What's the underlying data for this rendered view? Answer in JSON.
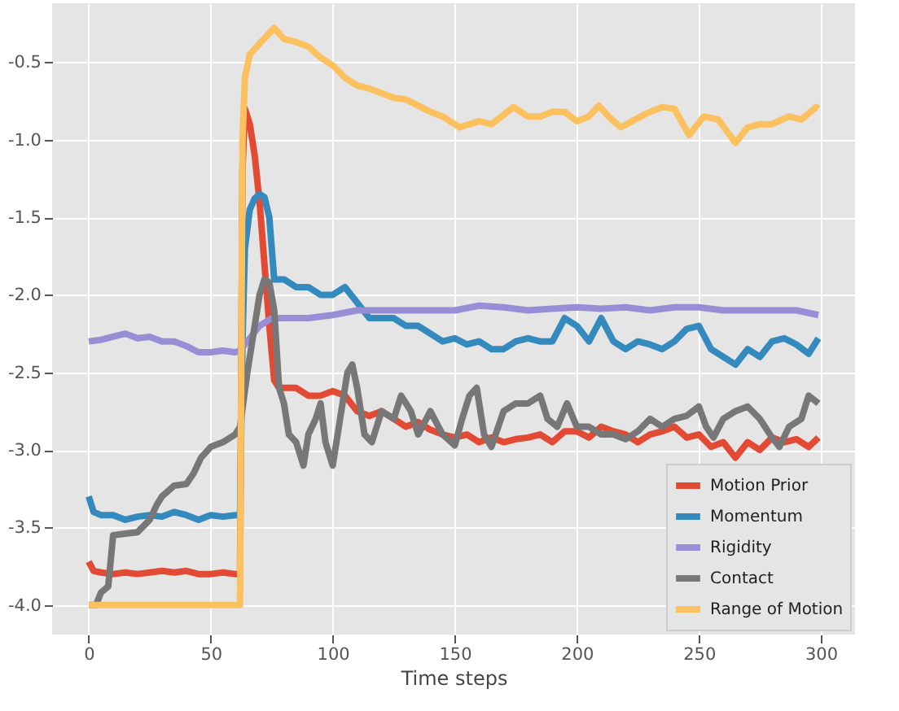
{
  "chart_data": {
    "type": "line",
    "xlabel": "Time steps",
    "xlim": [
      -15,
      314
    ],
    "ylim": [
      -4.19,
      -0.12
    ],
    "xticks": [
      0,
      50,
      100,
      150,
      200,
      250,
      300
    ],
    "yticks": [
      {
        "value": -4,
        "label": "-4.0"
      },
      -3.5,
      {
        "value": -3,
        "label": "-3.0"
      },
      -2.5,
      {
        "value": -2,
        "label": "-2.0"
      },
      -1.5,
      {
        "value": -1,
        "label": "-1.0"
      },
      -0.5
    ],
    "grid": true,
    "legend": "bottom right",
    "line_style": "solid",
    "series": [
      {
        "name": "Motion Prior",
        "color": "#e24a33",
        "x": [
          0,
          2,
          5,
          10,
          15,
          20,
          25,
          30,
          35,
          40,
          45,
          50,
          55,
          60,
          62,
          63,
          64,
          66,
          68,
          70,
          72,
          74,
          76,
          78,
          80,
          85,
          90,
          95,
          100,
          105,
          110,
          115,
          120,
          125,
          130,
          135,
          140,
          145,
          150,
          155,
          160,
          165,
          170,
          175,
          180,
          185,
          190,
          195,
          200,
          205,
          210,
          215,
          220,
          225,
          230,
          235,
          240,
          245,
          250,
          255,
          260,
          265,
          270,
          275,
          280,
          285,
          290,
          295,
          299
        ],
        "values": [
          -3.72,
          -3.78,
          -3.79,
          -3.8,
          -3.79,
          -3.8,
          -3.79,
          -3.78,
          -3.79,
          -3.78,
          -3.8,
          -3.8,
          -3.79,
          -3.8,
          -3.8,
          -1.2,
          -0.8,
          -0.9,
          -1.1,
          -1.4,
          -1.8,
          -2.2,
          -2.55,
          -2.6,
          -2.6,
          -2.6,
          -2.65,
          -2.65,
          -2.62,
          -2.65,
          -2.75,
          -2.78,
          -2.75,
          -2.8,
          -2.85,
          -2.82,
          -2.87,
          -2.9,
          -2.92,
          -2.9,
          -2.95,
          -2.92,
          -2.95,
          -2.93,
          -2.92,
          -2.9,
          -2.95,
          -2.88,
          -2.88,
          -2.92,
          -2.85,
          -2.88,
          -2.9,
          -2.95,
          -2.9,
          -2.88,
          -2.85,
          -2.92,
          -2.9,
          -2.98,
          -2.95,
          -3.05,
          -2.95,
          -3.0,
          -2.92,
          -2.95,
          -2.93,
          -2.98,
          -2.92
        ]
      },
      {
        "name": "Momentum",
        "color": "#348abd",
        "x": [
          0,
          2,
          5,
          10,
          15,
          20,
          25,
          30,
          35,
          40,
          45,
          50,
          55,
          60,
          62,
          63,
          64,
          66,
          68,
          70,
          72,
          74,
          76,
          80,
          85,
          90,
          95,
          100,
          105,
          110,
          115,
          120,
          125,
          130,
          135,
          140,
          145,
          150,
          155,
          160,
          165,
          170,
          175,
          180,
          185,
          190,
          195,
          200,
          205,
          210,
          215,
          220,
          225,
          230,
          235,
          240,
          245,
          250,
          255,
          260,
          265,
          270,
          275,
          280,
          285,
          290,
          295,
          299
        ],
        "values": [
          -3.3,
          -3.4,
          -3.42,
          -3.42,
          -3.45,
          -3.43,
          -3.42,
          -3.43,
          -3.4,
          -3.42,
          -3.45,
          -3.42,
          -3.43,
          -3.42,
          -3.42,
          -2.3,
          -1.7,
          -1.45,
          -1.38,
          -1.35,
          -1.37,
          -1.5,
          -1.9,
          -1.9,
          -1.95,
          -1.95,
          -2.0,
          -2.0,
          -1.95,
          -2.05,
          -2.15,
          -2.15,
          -2.15,
          -2.2,
          -2.2,
          -2.25,
          -2.3,
          -2.28,
          -2.32,
          -2.3,
          -2.35,
          -2.35,
          -2.3,
          -2.28,
          -2.3,
          -2.3,
          -2.15,
          -2.2,
          -2.3,
          -2.15,
          -2.3,
          -2.35,
          -2.3,
          -2.32,
          -2.35,
          -2.3,
          -2.22,
          -2.2,
          -2.35,
          -2.4,
          -2.45,
          -2.35,
          -2.4,
          -2.3,
          -2.28,
          -2.32,
          -2.38,
          -2.28
        ]
      },
      {
        "name": "Rigidity",
        "color": "#988ed5",
        "x": [
          0,
          5,
          10,
          15,
          20,
          25,
          30,
          35,
          40,
          45,
          50,
          55,
          60,
          62,
          65,
          70,
          75,
          80,
          90,
          100,
          110,
          120,
          130,
          140,
          150,
          160,
          170,
          180,
          190,
          200,
          210,
          220,
          230,
          240,
          250,
          260,
          270,
          280,
          290,
          299
        ],
        "values": [
          -2.3,
          -2.29,
          -2.27,
          -2.25,
          -2.28,
          -2.27,
          -2.3,
          -2.3,
          -2.33,
          -2.37,
          -2.37,
          -2.36,
          -2.37,
          -2.36,
          -2.3,
          -2.2,
          -2.15,
          -2.15,
          -2.15,
          -2.13,
          -2.1,
          -2.1,
          -2.1,
          -2.1,
          -2.1,
          -2.07,
          -2.08,
          -2.1,
          -2.09,
          -2.08,
          -2.09,
          -2.08,
          -2.1,
          -2.08,
          -2.08,
          -2.1,
          -2.1,
          -2.1,
          -2.1,
          -2.13
        ]
      },
      {
        "name": "Contact",
        "color": "#777777",
        "x": [
          0,
          3,
          5,
          8,
          10,
          15,
          20,
          25,
          28,
          30,
          35,
          40,
          43,
          46,
          50,
          55,
          60,
          62,
          65,
          68,
          70,
          72,
          74,
          76,
          78,
          80,
          82,
          85,
          88,
          90,
          93,
          95,
          97,
          100,
          103,
          106,
          108,
          110,
          113,
          116,
          120,
          125,
          128,
          132,
          135,
          140,
          145,
          150,
          153,
          156,
          159,
          162,
          165,
          170,
          175,
          180,
          185,
          188,
          192,
          196,
          200,
          205,
          210,
          215,
          220,
          225,
          230,
          235,
          240,
          245,
          250,
          253,
          256,
          260,
          265,
          270,
          275,
          280,
          283,
          287,
          292,
          295,
          299
        ],
        "values": [
          -4.0,
          -4.0,
          -3.92,
          -3.88,
          -3.55,
          -3.54,
          -3.53,
          -3.45,
          -3.35,
          -3.3,
          -3.23,
          -3.22,
          -3.15,
          -3.05,
          -2.98,
          -2.95,
          -2.9,
          -2.85,
          -2.5,
          -2.2,
          -2.0,
          -1.9,
          -1.92,
          -2.1,
          -2.6,
          -2.7,
          -2.9,
          -2.95,
          -3.1,
          -2.9,
          -2.8,
          -2.7,
          -2.95,
          -3.1,
          -2.8,
          -2.5,
          -2.45,
          -2.6,
          -2.9,
          -2.95,
          -2.75,
          -2.8,
          -2.65,
          -2.75,
          -2.9,
          -2.75,
          -2.9,
          -2.97,
          -2.8,
          -2.65,
          -2.6,
          -2.9,
          -2.98,
          -2.75,
          -2.7,
          -2.7,
          -2.65,
          -2.8,
          -2.85,
          -2.7,
          -2.85,
          -2.85,
          -2.9,
          -2.9,
          -2.93,
          -2.88,
          -2.8,
          -2.85,
          -2.8,
          -2.78,
          -2.72,
          -2.85,
          -2.92,
          -2.8,
          -2.75,
          -2.72,
          -2.8,
          -2.92,
          -2.98,
          -2.85,
          -2.8,
          -2.65,
          -2.7
        ]
      },
      {
        "name": "Range of Motion",
        "color": "#fbc15e",
        "x": [
          0,
          62,
          63,
          64,
          66,
          70,
          76,
          80,
          85,
          90,
          95,
          100,
          105,
          110,
          115,
          120,
          125,
          130,
          135,
          140,
          145,
          152,
          160,
          165,
          174,
          180,
          185,
          190,
          195,
          200,
          205,
          209,
          213,
          218,
          225,
          230,
          235,
          240,
          246,
          252,
          258,
          265,
          270,
          275,
          280,
          287,
          292,
          298,
          299
        ],
        "values": [
          -4.0,
          -4.0,
          -1.0,
          -0.6,
          -0.45,
          -0.38,
          -0.28,
          -0.35,
          -0.37,
          -0.4,
          -0.47,
          -0.52,
          -0.6,
          -0.65,
          -0.67,
          -0.7,
          -0.73,
          -0.74,
          -0.78,
          -0.82,
          -0.85,
          -0.92,
          -0.88,
          -0.9,
          -0.79,
          -0.85,
          -0.85,
          -0.82,
          -0.82,
          -0.88,
          -0.85,
          -0.78,
          -0.85,
          -0.92,
          -0.86,
          -0.82,
          -0.79,
          -0.8,
          -0.97,
          -0.85,
          -0.87,
          -1.02,
          -0.92,
          -0.9,
          -0.9,
          -0.85,
          -0.87,
          -0.79,
          -0.8
        ]
      }
    ]
  }
}
